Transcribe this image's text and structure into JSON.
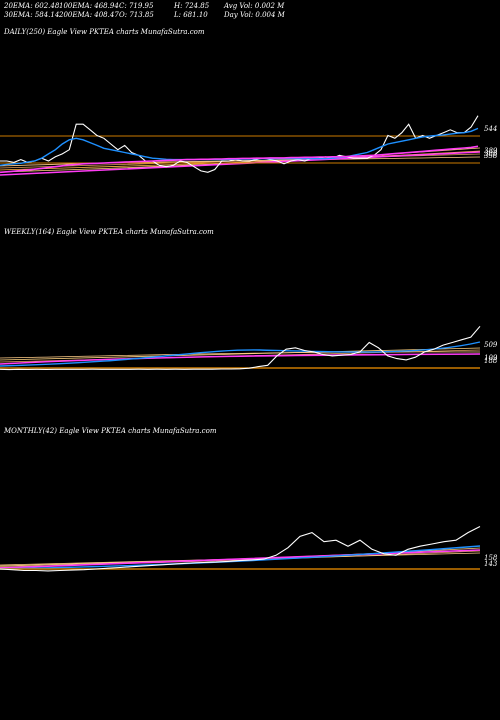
{
  "header": {
    "ema20": "20EMA: 602.48",
    "ema100": "100EMA: 468.94",
    "close": "C: 719.95",
    "high": "H: 724.85",
    "avg_vol": "Avg Vol: 0.002  M",
    "ema30": "30EMA: 584.14",
    "ema200": "200EMA: 408.47",
    "open": "O: 713.85",
    "low": "L: 681.10",
    "day_vol": "Day Vol: 0.004  M"
  },
  "panels": {
    "daily": {
      "title": "DAILY(250) Eagle  View  PKTEA charts MunafaSutra.com"
    },
    "weekly": {
      "title": "WEEKLY(164) Eagle  View  PKTEA charts MunafaSutra.com"
    },
    "monthly": {
      "title": "MONTHLY(42) Eagle  View  PKTEA charts MunafaSutra.com"
    }
  },
  "colors": {
    "background": "#000000",
    "price": "#ffffff",
    "ema_short": "#1e90ff",
    "ema_long": "#ff3cf5",
    "ema_mid": "#ffd27f",
    "level_line": "#cc7a00"
  },
  "chart_data": [
    {
      "type": "line",
      "title": "DAILY(250) Eagle  View  PKTEA charts MunafaSutra.com",
      "right_axis_labels": [
        "544",
        "389",
        "388",
        "358"
      ],
      "series": [
        {
          "values": [
            560,
            560,
            555,
            565,
            555,
            560,
            570,
            560,
            575,
            585,
            600,
            690,
            690,
            670,
            650,
            640,
            620,
            600,
            615,
            590,
            580,
            560,
            560,
            545,
            540,
            545,
            560,
            555,
            540,
            525,
            520,
            530,
            560,
            560,
            565,
            560,
            560,
            565,
            570,
            565,
            560,
            550,
            560,
            565,
            560,
            570,
            570,
            575,
            570,
            580,
            575,
            570,
            570,
            570,
            580,
            600,
            650,
            640,
            660,
            690,
            640,
            650,
            640,
            650,
            660,
            670,
            660,
            660,
            680,
            720
          ]
        },
        {
          "values": [
            545,
            548,
            550,
            552,
            556,
            560,
            570,
            585,
            600,
            620,
            635,
            640,
            635,
            625,
            615,
            605,
            600,
            595,
            590,
            585,
            580,
            575,
            570,
            568,
            566,
            565,
            565,
            565,
            565,
            565,
            565,
            565,
            565,
            566,
            566,
            567,
            567,
            568,
            568,
            568,
            568,
            568,
            568,
            568,
            568,
            568,
            568,
            568,
            570,
            572,
            575,
            580,
            585,
            590,
            600,
            610,
            620,
            625,
            630,
            635,
            640,
            645,
            648,
            650,
            652,
            655,
            658,
            660,
            665,
            675
          ]
        },
        {
          "values": [
            520,
            522,
            524,
            526,
            528,
            531,
            534,
            537,
            540,
            543,
            546,
            548,
            550,
            551,
            552,
            553,
            554,
            555,
            556,
            557,
            558,
            559,
            560,
            561,
            562,
            563,
            564,
            565,
            565,
            566,
            566,
            567,
            567,
            568,
            568,
            569,
            569,
            570,
            570,
            571,
            571,
            571,
            572,
            572,
            573,
            573,
            574,
            574,
            575,
            575,
            576,
            577,
            578,
            579,
            580,
            582,
            584,
            586,
            588,
            590,
            592,
            594,
            596,
            598,
            600,
            602,
            604,
            606,
            608,
            612
          ]
        }
      ]
    },
    {
      "type": "line",
      "title": "WEEKLY(164) Eagle  View  PKTEA charts MunafaSutra.com",
      "right_axis_labels": [
        "509",
        "109",
        "188"
      ],
      "series": [
        {
          "values": [
            100,
            98,
            100,
            99,
            100,
            99,
            100,
            100,
            100,
            100,
            101,
            100,
            100,
            100,
            100,
            101,
            100,
            101,
            100,
            101,
            100,
            101,
            101,
            101,
            102,
            102,
            104,
            108,
            120,
            130,
            200,
            250,
            260,
            240,
            230,
            210,
            200,
            205,
            210,
            230,
            300,
            260,
            200,
            180,
            170,
            190,
            230,
            250,
            280,
            300,
            320,
            340,
            420
          ]
        }
      ]
    },
    {
      "type": "line",
      "title": "MONTHLY(42) Eagle  View  PKTEA charts MunafaSutra.com",
      "right_axis_labels": [
        "158",
        "143"
      ],
      "series": [
        {
          "values": [
            120,
            110,
            100,
            100,
            95,
            100,
            105,
            110,
            120,
            130,
            140,
            150,
            160,
            170,
            180,
            190,
            200,
            205,
            210,
            220,
            230,
            240,
            250,
            300,
            400,
            550,
            600,
            480,
            500,
            420,
            500,
            380,
            320,
            300,
            380,
            420,
            450,
            480,
            500,
            600,
            680
          ]
        }
      ]
    }
  ]
}
